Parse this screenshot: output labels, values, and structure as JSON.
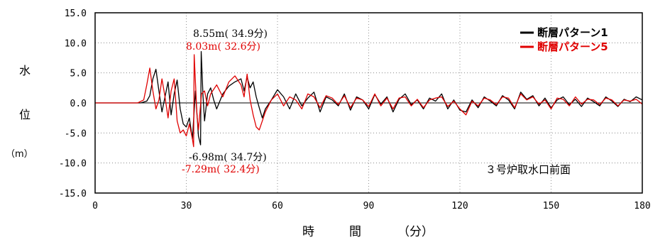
{
  "chart_data": {
    "type": "line",
    "title": "",
    "xlabel": {
      "c1": "時",
      "c2": "間",
      "unit": "（分）"
    },
    "ylabel": {
      "c1": "水",
      "c2": "位",
      "unit": "（m）"
    },
    "xlim": [
      0,
      180
    ],
    "ylim": [
      -15,
      15
    ],
    "xticks": [
      0,
      30,
      60,
      90,
      120,
      150,
      180
    ],
    "xtick_labels": [
      "0",
      "30",
      "60",
      "90",
      "120",
      "150",
      "180"
    ],
    "yticks": [
      15,
      10,
      5,
      0,
      -5,
      -10,
      -15
    ],
    "ytick_labels": [
      "15.0",
      "10.0",
      "5.0",
      "0.0",
      "-5.0",
      "-10.0",
      "-15.0"
    ],
    "grid": "dotted",
    "legend_position": "top-right",
    "location_label": "３号炉取水口前面",
    "series": [
      {
        "name": "断層パターン1",
        "color": "#000000",
        "x": [
          0,
          15,
          17,
          18,
          19,
          20,
          21,
          22,
          23,
          24,
          25,
          26,
          27,
          28,
          29,
          30,
          31,
          32,
          33,
          34,
          34.7,
          34.9,
          35.5,
          36,
          37,
          38,
          39,
          40,
          42,
          44,
          46,
          48,
          49,
          50,
          51,
          52,
          53,
          54,
          55,
          56,
          58,
          60,
          62,
          64,
          66,
          68,
          70,
          72,
          74,
          76,
          78,
          80,
          82,
          84,
          86,
          88,
          90,
          92,
          94,
          96,
          98,
          100,
          102,
          104,
          106,
          108,
          110,
          112,
          114,
          116,
          118,
          120,
          122,
          124,
          126,
          128,
          130,
          132,
          134,
          136,
          138,
          140,
          142,
          144,
          146,
          148,
          150,
          152,
          154,
          156,
          158,
          160,
          162,
          164,
          166,
          168,
          170,
          172,
          174,
          176,
          178,
          180
        ],
        "y": [
          0,
          0,
          0.3,
          1.2,
          4.0,
          5.6,
          2.0,
          -1.5,
          1.0,
          3.5,
          -2.0,
          1.5,
          3.8,
          -1.0,
          -3.5,
          -4.0,
          -2.5,
          -6.0,
          2.0,
          -5.5,
          -6.98,
          8.55,
          1.0,
          -3.0,
          1.5,
          2.5,
          0.5,
          -1.0,
          1.5,
          2.8,
          3.5,
          4.0,
          2.0,
          4.3,
          2.5,
          3.5,
          1.0,
          -0.8,
          -2.5,
          -1.0,
          0.5,
          2.2,
          1.0,
          -1.0,
          1.5,
          -0.5,
          0.8,
          1.8,
          -1.5,
          1.0,
          0.5,
          -0.5,
          1.5,
          -1.2,
          1.0,
          0.5,
          -1.0,
          1.4,
          -0.2,
          1.0,
          -1.5,
          0.6,
          1.5,
          -0.3,
          0.5,
          -1.0,
          0.8,
          0.3,
          1.5,
          -1.0,
          0.5,
          -1.2,
          -1.5,
          0.5,
          -0.8,
          1.0,
          0.3,
          -0.5,
          1.2,
          0.5,
          -1.0,
          1.8,
          0.6,
          1.2,
          -0.5,
          0.8,
          -0.8,
          0.5,
          1.0,
          -0.3,
          0.6,
          -0.6,
          0.8,
          0.2,
          -0.5,
          1.0,
          0.3,
          -0.6,
          0.6,
          0.2,
          1.0,
          0.5
        ]
      },
      {
        "name": "断層パターン5",
        "color": "#e00000",
        "x": [
          0,
          14,
          16,
          17,
          18,
          19,
          20,
          21,
          22,
          23,
          24,
          25,
          26,
          27,
          28,
          29,
          30,
          31,
          32,
          32.4,
          32.6,
          33.5,
          34,
          35,
          36,
          37,
          38,
          40,
          42,
          44,
          46,
          48,
          49,
          50,
          51,
          52,
          53,
          54,
          55,
          56,
          58,
          60,
          62,
          64,
          66,
          68,
          70,
          72,
          74,
          76,
          78,
          80,
          82,
          84,
          86,
          88,
          90,
          92,
          94,
          96,
          98,
          100,
          102,
          104,
          106,
          108,
          110,
          112,
          114,
          116,
          118,
          120,
          122,
          124,
          126,
          128,
          130,
          132,
          134,
          136,
          138,
          140,
          142,
          144,
          146,
          148,
          150,
          152,
          154,
          156,
          158,
          160,
          162,
          164,
          166,
          168,
          170,
          172,
          174,
          176,
          178,
          180
        ],
        "y": [
          0,
          0,
          0.5,
          3.0,
          5.8,
          2.0,
          -1.0,
          0.5,
          4.0,
          1.0,
          -2.5,
          2.0,
          4.0,
          -3.0,
          -5.0,
          -4.5,
          -5.5,
          -3.5,
          -6.0,
          -7.29,
          8.03,
          -2.0,
          -4.5,
          1.5,
          2.0,
          -0.5,
          1.5,
          3.0,
          1.0,
          3.5,
          4.5,
          3.0,
          1.0,
          4.8,
          0.5,
          -2.0,
          -4.0,
          -4.5,
          -3.0,
          -1.5,
          0.5,
          1.5,
          -0.5,
          1.0,
          0.5,
          -1.0,
          1.5,
          1.0,
          -0.8,
          1.2,
          0.8,
          -0.3,
          1.2,
          -0.8,
          0.8,
          0.5,
          -0.6,
          1.5,
          -0.5,
          0.8,
          -1.0,
          0.8,
          1.0,
          -0.5,
          0.6,
          -0.8,
          0.5,
          0.8,
          1.0,
          -0.6,
          0.3,
          -1.0,
          -2.0,
          0.3,
          -0.5,
          0.8,
          0.5,
          -0.3,
          1.0,
          0.8,
          -0.8,
          1.5,
          0.5,
          1.0,
          -0.2,
          0.5,
          -1.0,
          0.8,
          0.6,
          -0.5,
          1.0,
          -0.2,
          0.6,
          0.5,
          -0.3,
          0.8,
          0.5,
          -0.5,
          0.5,
          0.3,
          0.6,
          -0.2
        ]
      }
    ],
    "annotations": [
      {
        "text": "8.55m( 34.9分)",
        "color": "#000000"
      },
      {
        "text": "8.03m( 32.6分)",
        "color": "#e00000"
      },
      {
        "text": "-6.98m( 34.7分)",
        "color": "#000000"
      },
      {
        "text": "-7.29m( 32.4分)",
        "color": "#e00000"
      }
    ]
  }
}
